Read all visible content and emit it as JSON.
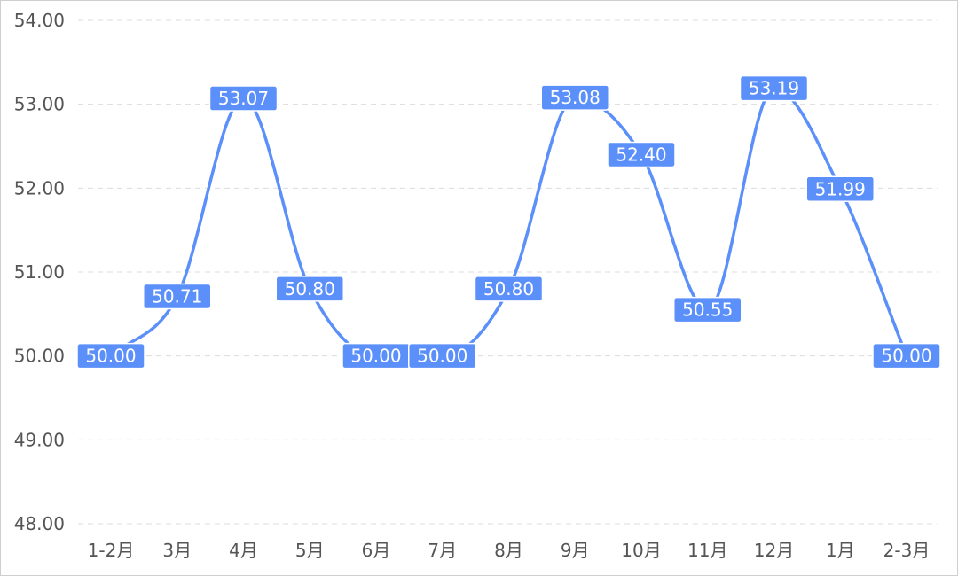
{
  "chart_data": {
    "type": "line",
    "title": "",
    "xlabel": "",
    "ylabel": "",
    "categories": [
      "1-2月",
      "3月",
      "4月",
      "5月",
      "6月",
      "7月",
      "8月",
      "9月",
      "10月",
      "11月",
      "12月",
      "1月",
      "2-3月"
    ],
    "series": [
      {
        "values": [
          50.0,
          50.71,
          53.07,
          50.8,
          50.0,
          50.0,
          50.8,
          53.08,
          52.4,
          50.55,
          53.19,
          51.99,
          50.0
        ],
        "labels": [
          "50.00",
          "50.71",
          "53.07",
          "50.80",
          "50.00",
          "50.00",
          "50.80",
          "53.08",
          "52.40",
          "50.55",
          "53.19",
          "51.99",
          "50.00"
        ]
      }
    ],
    "ylim": [
      48,
      54
    ],
    "yticks": [
      "48.00",
      "49.00",
      "50.00",
      "51.00",
      "52.00",
      "53.00",
      "54.00"
    ],
    "grid": true,
    "smooth": true,
    "colors": {
      "line": "#5b8ff9",
      "label_bg": "#5b8ff9",
      "label_text": "#ffffff"
    }
  }
}
